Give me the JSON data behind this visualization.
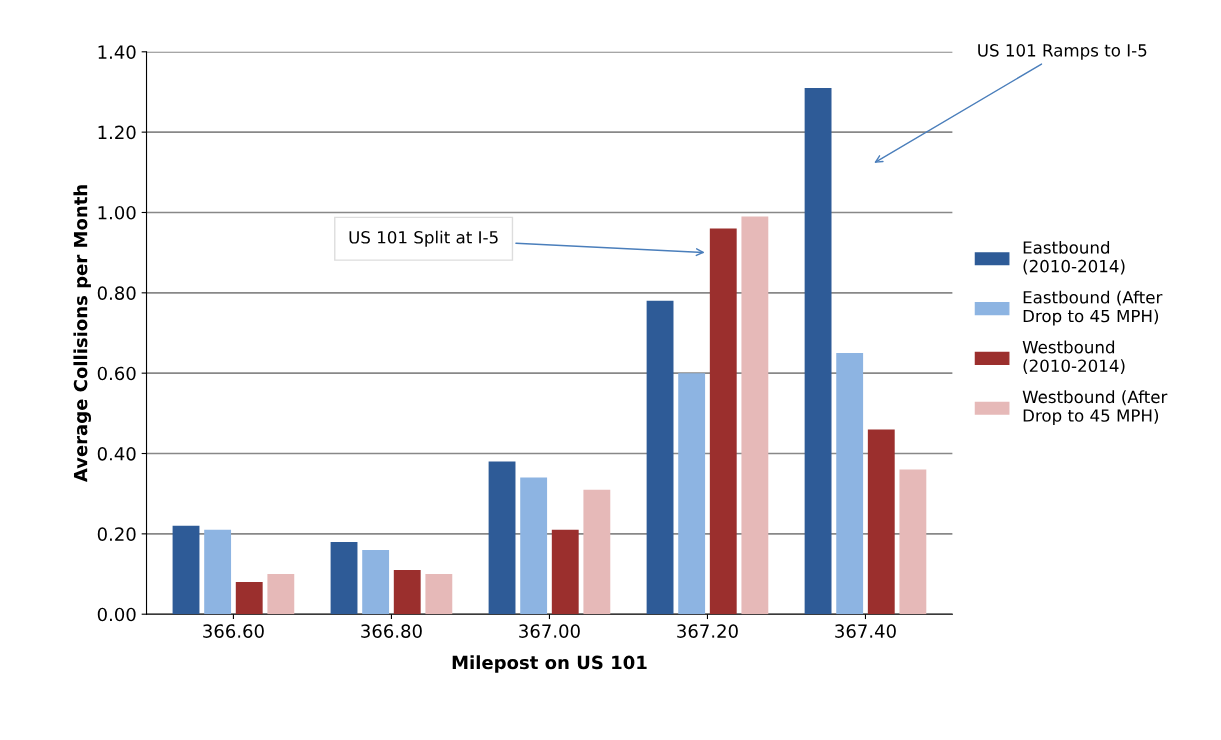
{
  "chart_data": {
    "type": "bar",
    "xlabel": "Milepost on US 101",
    "ylabel": "Average Collisions per Month",
    "categories": [
      "366.60",
      "366.80",
      "367.00",
      "367.20",
      "367.40"
    ],
    "series": [
      {
        "name": "Eastbound (2010-2014)",
        "color": "#2e5b97",
        "values": [
          0.22,
          0.18,
          0.38,
          0.78,
          1.31
        ]
      },
      {
        "name": "Eastbound (After Drop to 45 MPH)",
        "color": "#8db4e2",
        "values": [
          0.21,
          0.16,
          0.34,
          0.6,
          0.65
        ]
      },
      {
        "name": "Westbound (2010-2014)",
        "color": "#9b2f2d",
        "values": [
          0.08,
          0.11,
          0.21,
          0.96,
          0.46
        ]
      },
      {
        "name": "Westbound (After Drop to 45 MPH)",
        "color": "#e6b9b8",
        "values": [
          0.1,
          0.1,
          0.31,
          0.99,
          0.36
        ]
      }
    ],
    "ylim": [
      0,
      1.4
    ],
    "yticks": [
      {
        "value": 0,
        "label": "0.00"
      },
      {
        "value": 0.2,
        "label": "0.20"
      },
      {
        "value": 0.4,
        "label": "0.40"
      },
      {
        "value": 0.6,
        "label": "0.60"
      },
      {
        "value": 0.8,
        "label": "0.80"
      },
      {
        "value": 1.0,
        "label": "1.00"
      },
      {
        "value": 1.2,
        "label": "1.20"
      },
      {
        "value": 1.4,
        "label": "1.40"
      }
    ],
    "grid": "y",
    "legend": "right",
    "annotations": [
      {
        "text": "US 101 Split at I-5",
        "x": "367.20",
        "y": 0.9
      },
      "US 101 Ramps to I-5"
    ]
  }
}
